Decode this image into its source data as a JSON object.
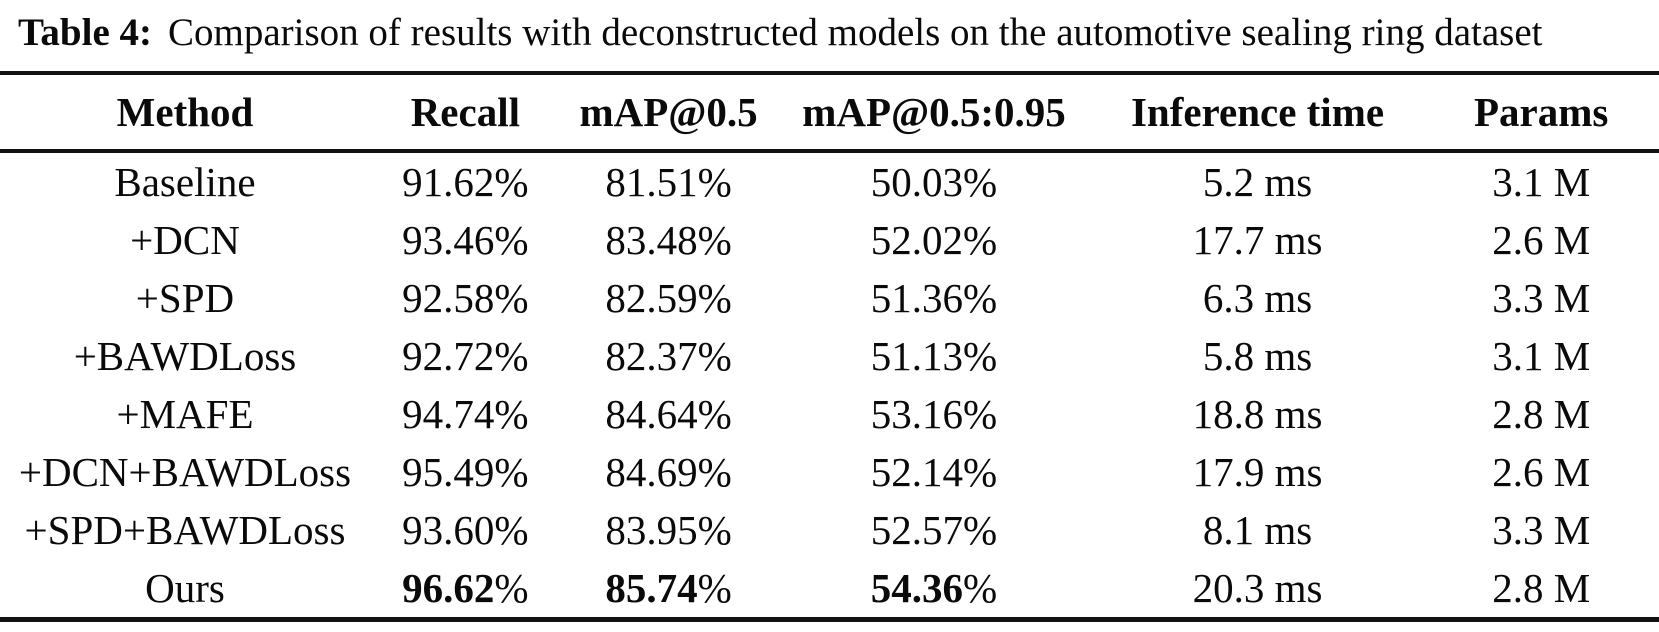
{
  "caption": {
    "label": "Table 4:",
    "text": "Comparison of results with deconstructed models on the automotive sealing ring dataset"
  },
  "table": {
    "columns": [
      "Method",
      "Recall",
      "mAP@0.5",
      "mAP@0.5:0.95",
      "Inference time",
      "Params"
    ],
    "rows": [
      {
        "cells": [
          "Baseline",
          "91.62%",
          "81.51%",
          "50.03%",
          "5.2 ms",
          "3.1 M"
        ],
        "bold_cols": []
      },
      {
        "cells": [
          "+DCN",
          "93.46%",
          "83.48%",
          "52.02%",
          "17.7 ms",
          "2.6 M"
        ],
        "bold_cols": []
      },
      {
        "cells": [
          "+SPD",
          "92.58%",
          "82.59%",
          "51.36%",
          "6.3 ms",
          "3.3 M"
        ],
        "bold_cols": []
      },
      {
        "cells": [
          "+BAWDLoss",
          "92.72%",
          "82.37%",
          "51.13%",
          "5.8 ms",
          "3.1 M"
        ],
        "bold_cols": []
      },
      {
        "cells": [
          "+MAFE",
          "94.74%",
          "84.64%",
          "53.16%",
          "18.8 ms",
          "2.8 M"
        ],
        "bold_cols": []
      },
      {
        "cells": [
          "+DCN+BAWDLoss",
          "95.49%",
          "84.69%",
          "52.14%",
          "17.9 ms",
          "2.6 M"
        ],
        "bold_cols": []
      },
      {
        "cells": [
          "+SPD+BAWDLoss",
          "93.60%",
          "83.95%",
          "52.57%",
          "8.1 ms",
          "3.3 M"
        ],
        "bold_cols": []
      },
      {
        "cells": [
          "Ours",
          "96.62%",
          "85.74%",
          "54.36%",
          "20.3 ms",
          "2.8 M"
        ],
        "bold_cols": [
          1,
          2,
          3
        ]
      }
    ],
    "column_widths_pct": [
      22.3,
      11.5,
      13.0,
      19.0,
      20.0,
      14.2
    ]
  },
  "colors": {
    "text": "#0a0a0a",
    "rule": "#111111",
    "background": "#ffffff"
  }
}
